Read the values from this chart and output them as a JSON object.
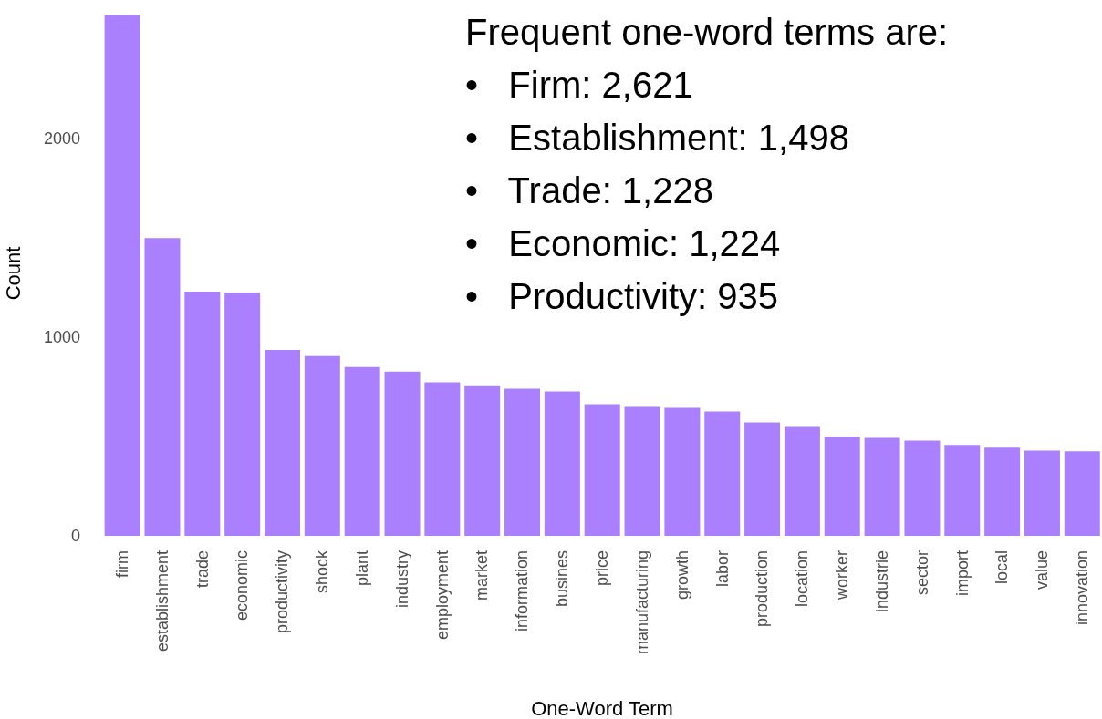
{
  "chart_data": {
    "type": "bar",
    "xlabel": "One-Word Term",
    "ylabel": "Count",
    "categories": [
      "firm",
      "establishment",
      "trade",
      "economic",
      "productivity",
      "shock",
      "plant",
      "industry",
      "employment",
      "market",
      "information",
      "busines",
      "price",
      "manufacturing",
      "growth",
      "labor",
      "production",
      "location",
      "worker",
      "industrie",
      "sector",
      "import",
      "local",
      "value",
      "innovation"
    ],
    "values": [
      2621,
      1498,
      1228,
      1224,
      935,
      904,
      849,
      826,
      772,
      753,
      740,
      726,
      662,
      648,
      644,
      626,
      571,
      548,
      498,
      493,
      479,
      457,
      443,
      429,
      425
    ],
    "color": "#aa80ff",
    "ylim": [
      0,
      2640
    ],
    "yticks": [
      0,
      1000,
      2000
    ],
    "grid": false,
    "annotations": [
      "Frequent one-word terms are:",
      "•   Firm: 2,621",
      "•   Establishment: 1,498",
      "•   Trade: 1,228",
      "•   Economic: 1,224",
      "•   Productivity: 935"
    ]
  }
}
